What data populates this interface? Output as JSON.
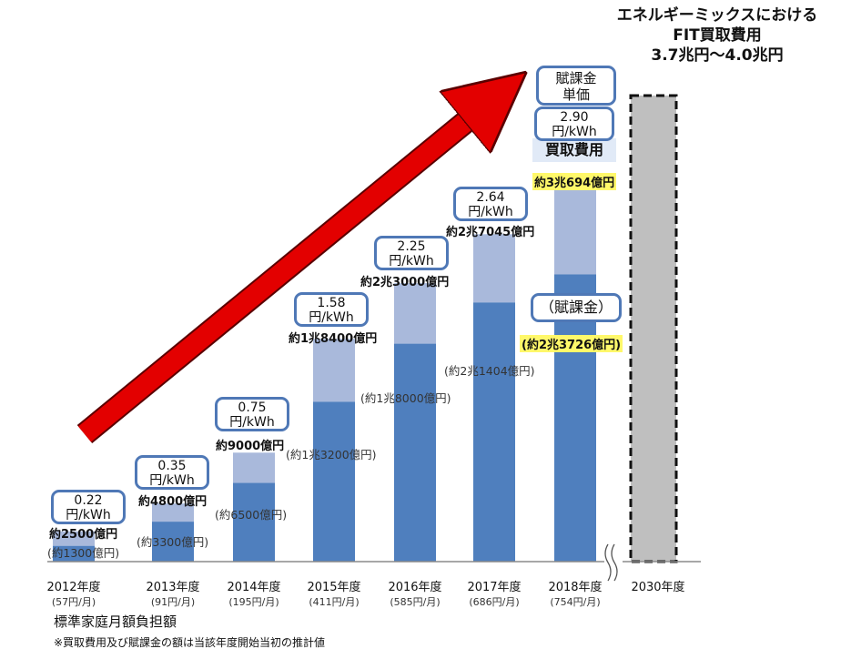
{
  "heading": {
    "line1": "エネルギーミックスにおける",
    "line2": "FIT買取費用",
    "line3": "3.7兆円～4.0兆円"
  },
  "legend": {
    "unit_price_line1": "賦課金",
    "unit_price_line2": "単価",
    "purchase_cost": "買取費用",
    "surcharge": "（賦課金）"
  },
  "footer": {
    "household": "標準家庭月額負担額",
    "note": "※買取費用及び賦課金の額は当該年度開始当初の推計値"
  },
  "chart_data": {
    "type": "bar",
    "categories": [
      "2012年度",
      "2013年度",
      "2014年度",
      "2015年度",
      "2016年度",
      "2017年度",
      "2018年度",
      "2030年度"
    ],
    "monthly_household": [
      "(57円/月)",
      "(91円/月)",
      "(195円/月)",
      "(411円/月)",
      "(585円/月)",
      "(686円/月)",
      "(754円/月)",
      ""
    ],
    "series": [
      {
        "name": "買取費用",
        "values": [
          2500,
          4800,
          9000,
          18400,
          23000,
          27045,
          30694,
          null
        ]
      },
      {
        "name": "賦課金",
        "values": [
          1300,
          3300,
          6500,
          13200,
          18000,
          21404,
          23726,
          null
        ]
      }
    ],
    "total_labels": [
      "約2500億円",
      "約4800億円",
      "約9000億円",
      "約1兆8400億円",
      "約2兆3000億円",
      "約2兆7045億円",
      "約3兆694億円",
      ""
    ],
    "surcharge_labels": [
      "(約1300億円)",
      "(約3300億円)",
      "(約6500億円)",
      "(約1兆3200億円)",
      "(約1兆8000億円)",
      "(約2兆1404億円)",
      "(約2兆3726億円)",
      ""
    ],
    "unit_prices": [
      {
        "value": "0.22",
        "unit": "円/kWh"
      },
      {
        "value": "0.35",
        "unit": "円/kWh"
      },
      {
        "value": "0.75",
        "unit": "円/kWh"
      },
      {
        "value": "1.58",
        "unit": "円/kWh"
      },
      {
        "value": "2.25",
        "unit": "円/kWh"
      },
      {
        "value": "2.64",
        "unit": "円/kWh"
      },
      {
        "value": "2.90",
        "unit": "円/kWh"
      }
    ],
    "projection_2030": {
      "low": 37000,
      "high": 40000
    },
    "colors": {
      "purchase": "#a9b9db",
      "surcharge": "#4f7fbe",
      "projection": "#bfbfbf",
      "arrow": "#e30000",
      "box_border": "#4f78b6",
      "highlight": "#fff86a"
    },
    "ylim": [
      0,
      45000
    ]
  }
}
